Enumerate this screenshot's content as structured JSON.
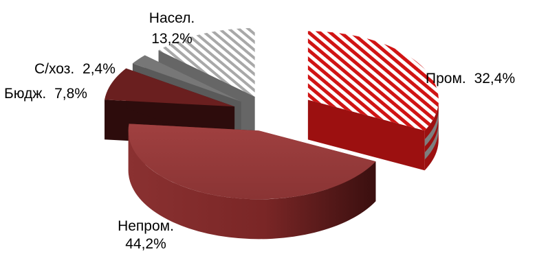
{
  "chart_data": {
    "type": "pie",
    "style": "3d-exploded",
    "title": "",
    "slices": [
      {
        "label": "Пром.",
        "value": 32.4,
        "value_text": "32,4%",
        "color": "#d01414",
        "pattern": "diagonal-stripes"
      },
      {
        "label": "Непром.",
        "value": 44.2,
        "value_text": "44,2%",
        "color": "#8e3333",
        "pattern": "none"
      },
      {
        "label": "Бюдж.",
        "value": 7.8,
        "value_text": "7,8%",
        "color": "#5e1c1c",
        "pattern": "none"
      },
      {
        "label": "С/хоз.",
        "value": 2.4,
        "value_text": "2,4%",
        "color": "#808080",
        "pattern": "none"
      },
      {
        "label": "Насел.",
        "value": 13.2,
        "value_text": "13,2%",
        "color": "#b0b0b0",
        "pattern": "diagonal-stripes"
      }
    ],
    "legend": "none"
  }
}
